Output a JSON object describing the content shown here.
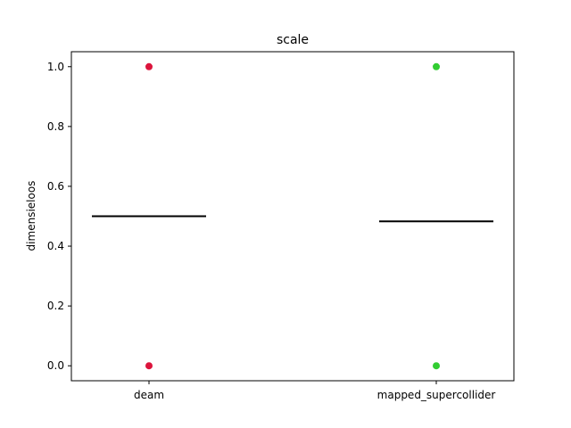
{
  "chart_data": {
    "type": "scatter",
    "title": "scale",
    "xlabel": "",
    "ylabel": "dimensieloos",
    "categories": [
      "deam",
      "mapped_supercollider"
    ],
    "ylim": [
      -0.05,
      1.05
    ],
    "yticks": [
      0.0,
      0.2,
      0.4,
      0.6,
      0.8,
      1.0
    ],
    "ytick_labels": [
      "0.0",
      "0.2",
      "0.4",
      "0.6",
      "0.8",
      "1.0"
    ],
    "grid": false,
    "series": [
      {
        "category": "deam",
        "color": "#dc143c",
        "values": [
          0.0,
          1.0
        ],
        "median_line": 0.5
      },
      {
        "category": "mapped_supercollider",
        "color": "#32cd32",
        "values": [
          0.0,
          1.0
        ],
        "median_line": 0.483
      }
    ]
  }
}
